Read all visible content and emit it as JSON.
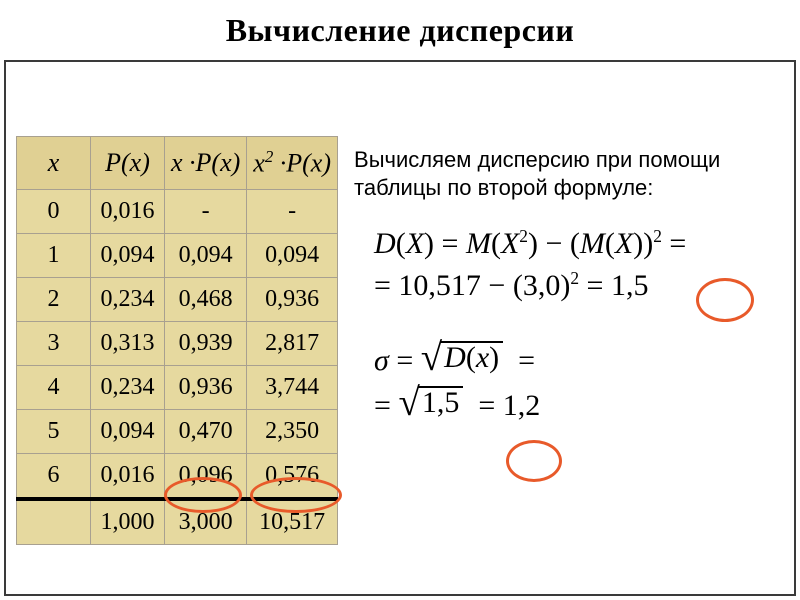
{
  "title": "Вычисление дисперсии",
  "table": {
    "headers": [
      "x",
      "P(x)",
      "x ·P(x)",
      "x² ·P(x)"
    ],
    "rows": [
      [
        "0",
        "0,016",
        "-",
        "-"
      ],
      [
        "1",
        "0,094",
        "0,094",
        "0,094"
      ],
      [
        "2",
        "0,234",
        "0,468",
        "0,936"
      ],
      [
        "3",
        "0,313",
        "0,939",
        "2,817"
      ],
      [
        "4",
        "0,234",
        "0,936",
        "3,744"
      ],
      [
        "5",
        "0,094",
        "0,470",
        "2,350"
      ],
      [
        "6",
        "0,016",
        "0,096",
        "0,576"
      ]
    ],
    "totals": [
      "",
      "1,000",
      "3,000",
      "10,517"
    ],
    "colors": {
      "header_bg": "#e0d093",
      "cell_bg": "#e6d99f",
      "border": "#a8a090"
    }
  },
  "explain": "Вычисляем дисперсию при помощи таблицы по второй формуле:",
  "eq": {
    "d_lhs": "D(X) = M(X²) − (M(X))² =",
    "d_sub": "= 10,517 − (3,0)² = 1,5",
    "d_result": "1,5",
    "sigma_lhs": "σ =",
    "sigma_rad1": "D(x)",
    "sigma_eq": " =",
    "sigma_rad2": "1,5",
    "sigma_result": "1,2"
  },
  "highlight_color": "#e85a2a"
}
